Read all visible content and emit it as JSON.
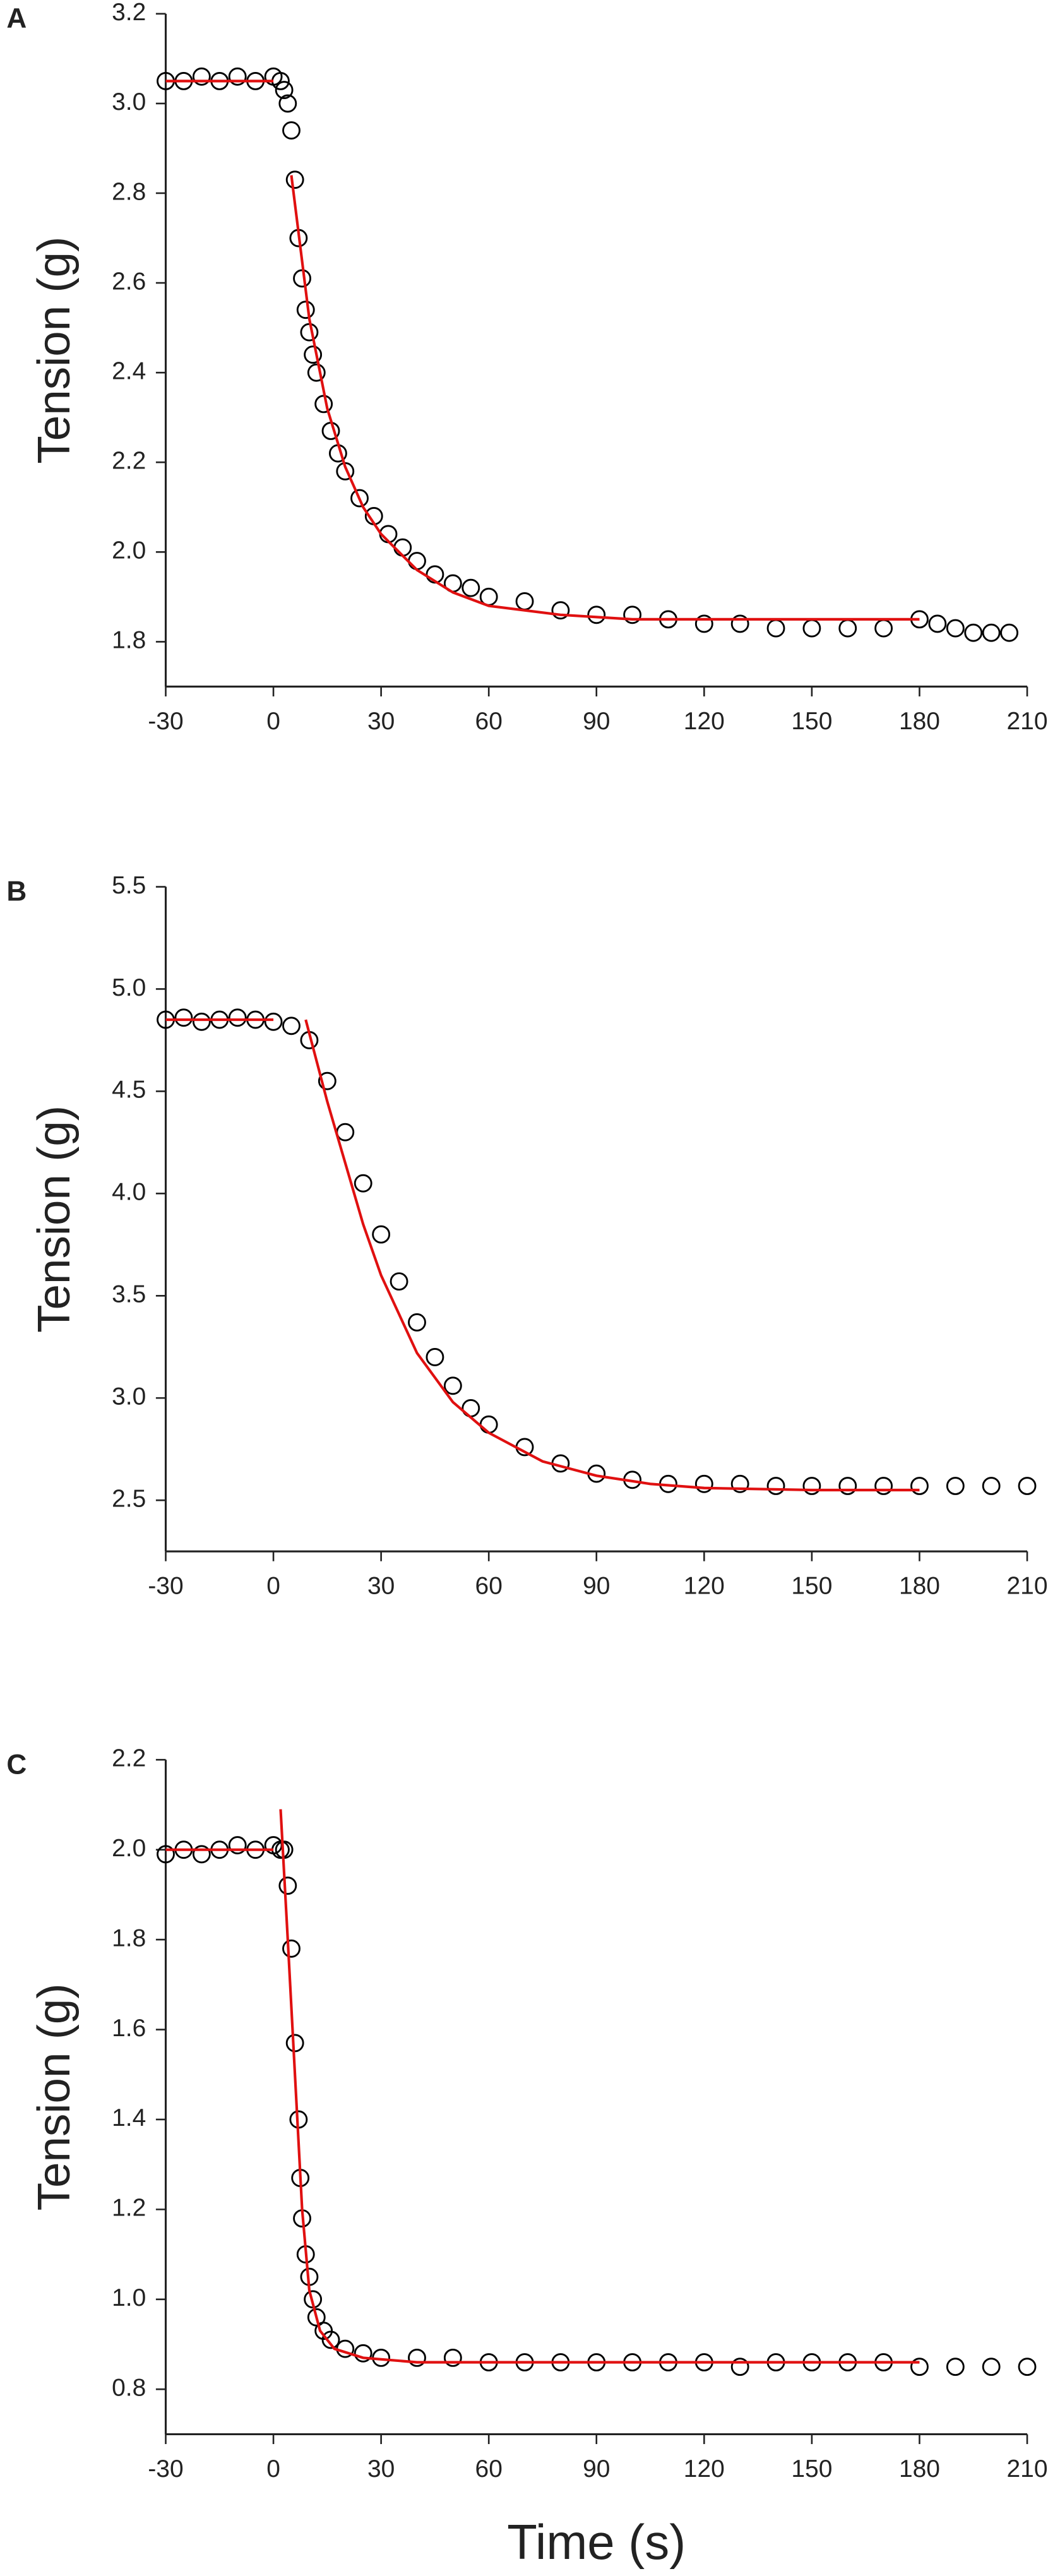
{
  "chart_data": [
    {
      "type": "scatter",
      "panel_label": "A",
      "ylabel": "Tension (g)",
      "xlim": [
        -30,
        210
      ],
      "xticks": [
        -30,
        0,
        30,
        60,
        90,
        120,
        150,
        180,
        210
      ],
      "ylim": [
        1.7,
        3.2
      ],
      "yticks": [
        1.8,
        {
          "value": 2,
          "label": "2.0"
        },
        2.2,
        2.4,
        2.6,
        2.8,
        {
          "value": 3,
          "label": "3.0"
        },
        3.2
      ],
      "series": [
        {
          "type": "scatter",
          "color": "#000000",
          "x": [
            -30,
            -25,
            -20,
            -15,
            -10,
            -5,
            0,
            2,
            3,
            4,
            5,
            6,
            7,
            8,
            9,
            10,
            11,
            12,
            14,
            16,
            18,
            20,
            24,
            28,
            32,
            36,
            40,
            45,
            50,
            55,
            60,
            70,
            80,
            90,
            100,
            110,
            120,
            130,
            140,
            150,
            160,
            170,
            180,
            185,
            190,
            195,
            200,
            205
          ],
          "values": [
            3.05,
            3.05,
            3.06,
            3.05,
            3.06,
            3.05,
            3.06,
            3.05,
            3.03,
            3.0,
            2.94,
            2.83,
            2.7,
            2.61,
            2.54,
            2.49,
            2.44,
            2.4,
            2.33,
            2.27,
            2.22,
            2.18,
            2.12,
            2.08,
            2.04,
            2.01,
            1.98,
            1.95,
            1.93,
            1.92,
            1.9,
            1.89,
            1.87,
            1.86,
            1.86,
            1.85,
            1.84,
            1.84,
            1.83,
            1.83,
            1.83,
            1.83,
            1.85,
            1.84,
            1.83,
            1.82,
            1.82,
            1.82
          ]
        },
        {
          "type": "line",
          "color": "#e01010",
          "x": [
            -30,
            0,
            null,
            5,
            10,
            15,
            20,
            25,
            30,
            40,
            50,
            60,
            80,
            100,
            120,
            180
          ],
          "values": [
            3.05,
            3.05,
            null,
            2.84,
            2.52,
            2.32,
            2.19,
            2.1,
            2.04,
            1.96,
            1.91,
            1.88,
            1.86,
            1.85,
            1.85,
            1.85
          ]
        }
      ]
    },
    {
      "type": "scatter",
      "panel_label": "B",
      "ylabel": "Tension (g)",
      "xlim": [
        -30,
        210
      ],
      "xticks": [
        -30,
        0,
        30,
        60,
        90,
        120,
        150,
        180,
        210
      ],
      "ylim": [
        2.25,
        5.5
      ],
      "yticks": [
        2.5,
        {
          "value": 3,
          "label": "3.0"
        },
        3.5,
        {
          "value": 4,
          "label": "4.0"
        },
        4.5,
        {
          "value": 5,
          "label": "5.0"
        },
        5.5
      ],
      "series": [
        {
          "type": "scatter",
          "color": "#000000",
          "x": [
            -30,
            -25,
            -20,
            -15,
            -10,
            -5,
            0,
            5,
            10,
            15,
            20,
            25,
            30,
            35,
            40,
            45,
            50,
            55,
            60,
            70,
            80,
            90,
            100,
            110,
            120,
            130,
            140,
            150,
            160,
            170,
            180,
            190,
            200,
            210
          ],
          "values": [
            4.85,
            4.86,
            4.84,
            4.85,
            4.86,
            4.85,
            4.84,
            4.82,
            4.75,
            4.55,
            4.3,
            4.05,
            3.8,
            3.57,
            3.37,
            3.2,
            3.06,
            2.95,
            2.87,
            2.76,
            2.68,
            2.63,
            2.6,
            2.58,
            2.58,
            2.58,
            2.57,
            2.57,
            2.57,
            2.57,
            2.57,
            2.57,
            2.57,
            2.57
          ]
        },
        {
          "type": "line",
          "color": "#e01010",
          "x": [
            -30,
            0,
            null,
            9,
            15,
            20,
            25,
            30,
            40,
            50,
            60,
            75,
            90,
            105,
            120,
            150,
            180
          ],
          "values": [
            4.85,
            4.85,
            null,
            4.85,
            4.45,
            4.15,
            3.85,
            3.6,
            3.22,
            2.98,
            2.83,
            2.69,
            2.62,
            2.58,
            2.56,
            2.55,
            2.55
          ]
        }
      ]
    },
    {
      "type": "scatter",
      "panel_label": "C",
      "ylabel": "Tension (g)",
      "xlabel": "Time (s)",
      "xlim": [
        -30,
        210
      ],
      "xticks": [
        -30,
        0,
        30,
        60,
        90,
        120,
        150,
        180,
        210
      ],
      "ylim": [
        0.7,
        2.2
      ],
      "yticks": [
        0.8,
        {
          "value": 1,
          "label": "1.0"
        },
        1.2,
        1.4,
        1.6,
        1.8,
        {
          "value": 2,
          "label": "2.0"
        },
        2.2
      ],
      "series": [
        {
          "type": "scatter",
          "color": "#000000",
          "x": [
            -30,
            -25,
            -20,
            -15,
            -10,
            -5,
            0,
            2,
            3,
            4,
            5,
            6,
            7,
            7.5,
            8,
            9,
            10,
            11,
            12,
            14,
            16,
            20,
            25,
            30,
            40,
            50,
            60,
            70,
            80,
            90,
            100,
            110,
            120,
            130,
            140,
            150,
            160,
            170,
            180,
            190,
            200,
            210
          ],
          "values": [
            1.99,
            2.0,
            1.99,
            2.0,
            2.01,
            2.0,
            2.01,
            2.0,
            2.0,
            1.92,
            1.78,
            1.57,
            1.4,
            1.27,
            1.18,
            1.1,
            1.05,
            1.0,
            0.96,
            0.93,
            0.91,
            0.89,
            0.88,
            0.87,
            0.87,
            0.87,
            0.86,
            0.86,
            0.86,
            0.86,
            0.86,
            0.86,
            0.86,
            0.85,
            0.86,
            0.86,
            0.86,
            0.86,
            0.85,
            0.85,
            0.85,
            0.85
          ]
        },
        {
          "type": "line",
          "color": "#e01010",
          "x": [
            -30,
            0,
            null,
            2,
            4,
            6,
            8,
            10,
            13,
            17,
            25,
            40,
            100,
            180
          ],
          "values": [
            2.0,
            2.0,
            null,
            2.09,
            1.8,
            1.5,
            1.2,
            1.02,
            0.93,
            0.89,
            0.87,
            0.86,
            0.86,
            0.86
          ]
        }
      ]
    }
  ]
}
